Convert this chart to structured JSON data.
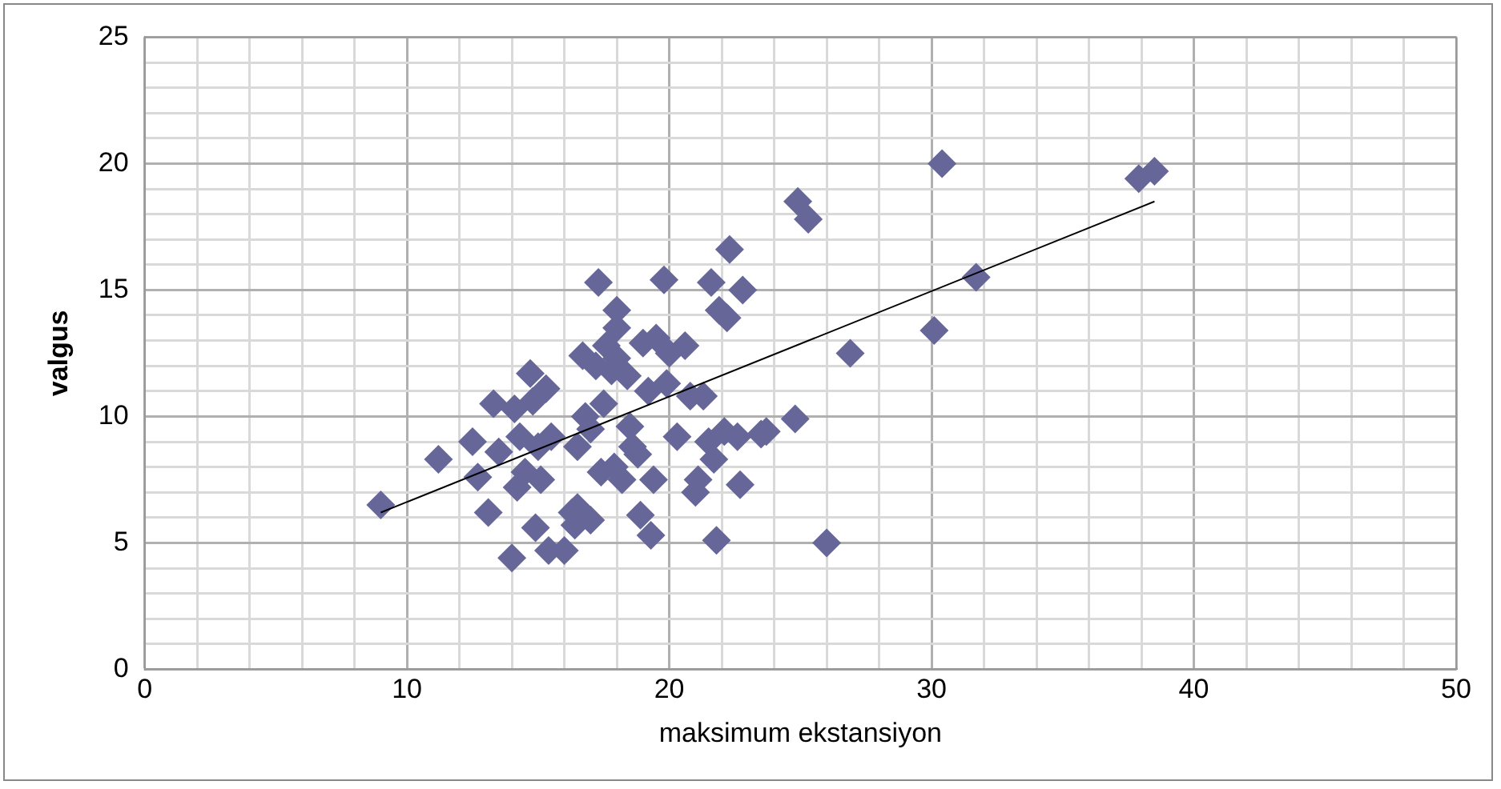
{
  "chart_data": {
    "type": "scatter",
    "xlabel": "maksimum ekstansiyon",
    "ylabel": "valgus",
    "marker": "diamond",
    "grid": true,
    "legend": false,
    "xlim": [
      0,
      50
    ],
    "ylim": [
      0,
      25
    ],
    "xticks": [
      0,
      {
        "value": 2,
        "label": null
      },
      {
        "value": 4,
        "label": null
      },
      {
        "value": 6,
        "label": null
      },
      {
        "value": 8,
        "label": null
      },
      10,
      {
        "value": 12,
        "label": null
      },
      {
        "value": 14,
        "label": null
      },
      {
        "value": 16,
        "label": null
      },
      {
        "value": 18,
        "label": null
      },
      20,
      {
        "value": 22,
        "label": null
      },
      {
        "value": 24,
        "label": null
      },
      {
        "value": 26,
        "label": null
      },
      {
        "value": 28,
        "label": null
      },
      30,
      {
        "value": 32,
        "label": null
      },
      {
        "value": 34,
        "label": null
      },
      {
        "value": 36,
        "label": null
      },
      {
        "value": 38,
        "label": null
      },
      40,
      {
        "value": 42,
        "label": null
      },
      {
        "value": 44,
        "label": null
      },
      {
        "value": 46,
        "label": null
      },
      {
        "value": 48,
        "label": null
      },
      50
    ],
    "yticks": [
      0,
      {
        "value": 1,
        "label": null
      },
      {
        "value": 2,
        "label": null
      },
      {
        "value": 3,
        "label": null
      },
      {
        "value": 4,
        "label": null
      },
      5,
      {
        "value": 6,
        "label": null
      },
      {
        "value": 7,
        "label": null
      },
      {
        "value": 8,
        "label": null
      },
      {
        "value": 9,
        "label": null
      },
      10,
      {
        "value": 11,
        "label": null
      },
      {
        "value": 12,
        "label": null
      },
      {
        "value": 13,
        "label": null
      },
      {
        "value": 14,
        "label": null
      },
      15,
      {
        "value": 16,
        "label": null
      },
      {
        "value": 17,
        "label": null
      },
      {
        "value": 18,
        "label": null
      },
      {
        "value": 19,
        "label": null
      },
      20,
      {
        "value": 21,
        "label": null
      },
      {
        "value": 22,
        "label": null
      },
      {
        "value": 23,
        "label": null
      },
      {
        "value": 24,
        "label": null
      },
      25
    ],
    "series": [
      {
        "color": "#666699",
        "x": [
          9,
          11.2,
          12.5,
          12.7,
          13.1,
          13.3,
          13.5,
          14,
          14.1,
          14.2,
          14.3,
          14.5,
          14.7,
          14.8,
          14.9,
          15,
          15.1,
          15.3,
          15.4,
          15.5,
          16,
          16.3,
          16.4,
          16.5,
          16.5,
          16.7,
          16.8,
          17,
          17,
          17.2,
          17.3,
          17.4,
          17.5,
          17.6,
          17.8,
          17.9,
          18,
          18,
          18,
          18.2,
          18.4,
          18.5,
          18.6,
          18.8,
          18.9,
          19,
          19.2,
          19.3,
          19.4,
          19.5,
          19.8,
          19.9,
          20,
          20.3,
          20.6,
          20.8,
          21,
          21.1,
          21.3,
          21.5,
          21.6,
          21.7,
          21.8,
          21.9,
          22.1,
          22.2,
          22.3,
          22.6,
          22.7,
          22.8,
          23.5,
          23.7,
          24.8,
          24.9,
          25.3,
          26,
          26.9,
          30.1,
          30.4,
          31.7,
          37.9,
          38.5
        ],
        "values": [
          6.5,
          8.3,
          9,
          7.6,
          6.2,
          10.5,
          8.6,
          4.4,
          10.3,
          7.2,
          9.2,
          7.8,
          11.7,
          10.6,
          5.6,
          8.8,
          7.5,
          11.1,
          4.7,
          9.2,
          4.7,
          6.2,
          5.7,
          6.4,
          8.8,
          12.4,
          10,
          9.5,
          5.9,
          12,
          15.3,
          7.8,
          10.5,
          12.8,
          11.8,
          8,
          14.2,
          12.3,
          13.5,
          7.5,
          11.6,
          9.6,
          8.8,
          8.5,
          6.1,
          12.9,
          11,
          5.3,
          7.5,
          13.1,
          15.4,
          11.3,
          12.5,
          9.2,
          12.8,
          10.8,
          7,
          7.5,
          10.8,
          9,
          15.3,
          8.3,
          5.1,
          14.2,
          9.4,
          13.9,
          16.6,
          9.2,
          7.3,
          15,
          9.3,
          9.4,
          9.9,
          18.5,
          17.8,
          5,
          12.5,
          13.4,
          20,
          15.5,
          19.4,
          19.7
        ]
      },
      {
        "type": "line",
        "color": "#000000",
        "marker": "none",
        "x": [
          9,
          38.5
        ],
        "values": [
          6.2,
          18.5
        ]
      }
    ]
  }
}
